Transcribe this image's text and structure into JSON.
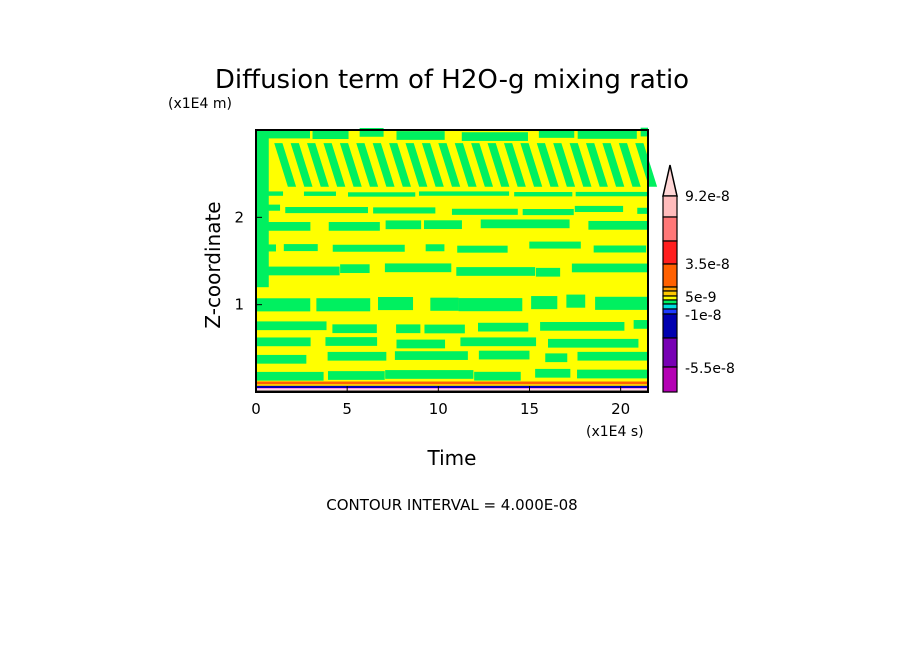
{
  "chart_data": {
    "type": "heatmap",
    "title": "Diffusion term of H2O-g mixing ratio",
    "xlabel": "Time",
    "ylabel": "Z-coordinate",
    "x_unit_label": "(x1E4 s)",
    "y_unit_label": "(x1E4 m)",
    "xlim": [
      0,
      21.5
    ],
    "ylim": [
      0,
      3.0
    ],
    "x_ticks": [
      0,
      5,
      10,
      15,
      20
    ],
    "x_tick_labels": [
      "0",
      "5",
      "10",
      "15",
      "20"
    ],
    "y_ticks": [
      1,
      2
    ],
    "y_tick_labels": [
      "1",
      "2"
    ],
    "footer": "CONTOUR INTERVAL = 4.000E-08",
    "colorbar": {
      "colors": [
        "#ffd6d6",
        "#ffbcbc",
        "#ff7878",
        "#ff1e1e",
        "#ff6000",
        "#ffa000",
        "#ffc800",
        "#ffff00",
        "#00f060",
        "#00e0e0",
        "#1e3cff",
        "#0000b0",
        "#7800b4",
        "#b400b4"
      ],
      "labels": [
        "9.2e-8",
        "3.5e-8",
        "5e-9",
        "-1e-8",
        "-5.5e-8"
      ],
      "label_values": [
        9.2e-08,
        3.5e-08,
        5e-09,
        -1e-08,
        -5.5e-08
      ]
    },
    "dominant_colors": {
      "background_field": "#ffff00",
      "bands": "#00f060"
    }
  }
}
